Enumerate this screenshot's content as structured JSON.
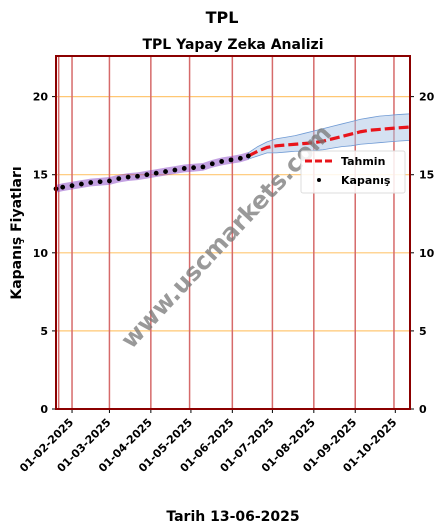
{
  "chart_data": {
    "type": "line",
    "suptitle": "TPL",
    "title": "TPL Yapay Zeka Analizi",
    "xlabel": "Tarih 13-06-2025",
    "ylabel": "Kapanış Fiyatları",
    "watermark": "www.uscmarkets.com",
    "ylim": [
      0,
      22.6
    ],
    "yticks": [
      0,
      5,
      10,
      15,
      20
    ],
    "xlim": [
      "2025-01-20",
      "2025-10-12"
    ],
    "xticks": [
      "01-02-2025",
      "01-03-2025",
      "01-04-2025",
      "01-05-2025",
      "01-06-2025",
      "01-07-2025",
      "01-08-2025",
      "01-09-2025",
      "01-10-2025"
    ],
    "vlines": [
      "2025-01-22",
      "2025-02-01",
      "2025-03-01",
      "2025-04-01",
      "2025-04-30",
      "2025-06-01",
      "2025-07-01",
      "2025-08-01",
      "2025-09-01",
      "2025-09-30"
    ],
    "legend_position": "right",
    "grid": "horizontal",
    "colors": {
      "frame": "#8b0000",
      "vline": "#d66a6a",
      "hgrid": "#ffc773",
      "forecast": "#e8141b",
      "band": "#a9c4e6",
      "actual": "#000000",
      "actual_band": "#7b2fbe"
    },
    "series": [
      {
        "name": "Kapanış",
        "style": "points",
        "x": [
          "2025-01-20",
          "2025-01-25",
          "2025-02-01",
          "2025-02-08",
          "2025-02-15",
          "2025-02-22",
          "2025-03-01",
          "2025-03-08",
          "2025-03-15",
          "2025-03-22",
          "2025-03-29",
          "2025-04-05",
          "2025-04-12",
          "2025-04-19",
          "2025-04-26",
          "2025-05-03",
          "2025-05-10",
          "2025-05-17",
          "2025-05-24",
          "2025-05-31",
          "2025-06-07",
          "2025-06-13"
        ],
        "y": [
          14.1,
          14.2,
          14.3,
          14.4,
          14.5,
          14.55,
          14.6,
          14.75,
          14.85,
          14.9,
          15.0,
          15.1,
          15.2,
          15.3,
          15.4,
          15.45,
          15.5,
          15.7,
          15.85,
          15.95,
          16.05,
          16.2
        ]
      },
      {
        "name": "Tahmin",
        "style": "dashed",
        "x": [
          "2025-06-13",
          "2025-06-20",
          "2025-06-27",
          "2025-07-04",
          "2025-07-11",
          "2025-07-18",
          "2025-07-25",
          "2025-08-01",
          "2025-08-08",
          "2025-08-15",
          "2025-08-22",
          "2025-08-29",
          "2025-09-05",
          "2025-09-12",
          "2025-09-19",
          "2025-09-26",
          "2025-10-03",
          "2025-10-12"
        ],
        "y": [
          16.2,
          16.5,
          16.75,
          16.85,
          16.9,
          16.95,
          17.0,
          17.05,
          17.15,
          17.3,
          17.45,
          17.6,
          17.75,
          17.85,
          17.9,
          17.95,
          18.0,
          18.05
        ],
        "upper": [
          16.4,
          16.8,
          17.1,
          17.3,
          17.4,
          17.5,
          17.65,
          17.8,
          17.95,
          18.1,
          18.25,
          18.4,
          18.55,
          18.65,
          18.75,
          18.8,
          18.85,
          18.9
        ],
        "lower": [
          16.0,
          16.2,
          16.4,
          16.4,
          16.45,
          16.5,
          16.5,
          16.55,
          16.6,
          16.7,
          16.8,
          16.85,
          16.95,
          17.0,
          17.05,
          17.1,
          17.15,
          17.2
        ]
      }
    ]
  }
}
